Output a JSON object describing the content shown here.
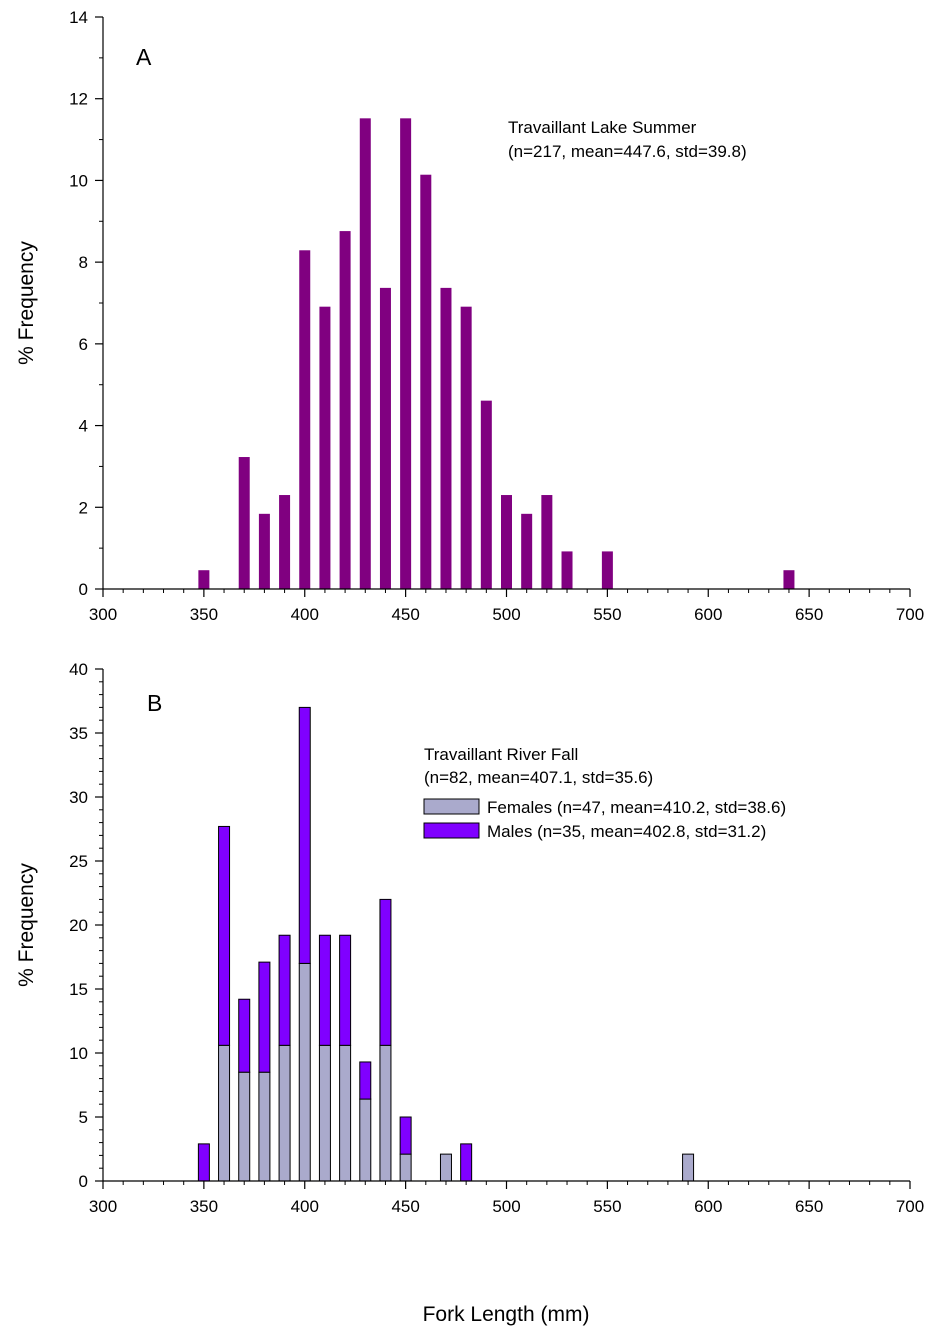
{
  "figure": {
    "xlabel": "Fork Length (mm)"
  },
  "chart_data": [
    {
      "type": "bar",
      "panel_label": "A",
      "title": "",
      "annotation_lines": [
        "Travaillant Lake Summer",
        "(n=217, mean=447.6, std=39.8)"
      ],
      "xlabel": "",
      "ylabel": "% Frequency",
      "xlim": [
        300,
        700
      ],
      "ylim": [
        0,
        14
      ],
      "x_ticks": [
        300,
        350,
        400,
        450,
        500,
        550,
        600,
        650,
        700
      ],
      "x_minor_step": 10,
      "y_ticks": [
        0,
        2,
        4,
        6,
        8,
        10,
        12,
        14
      ],
      "y_minor_step": 1,
      "grid": false,
      "legend": "none",
      "colors": {
        "bar": "#800080"
      },
      "x": [
        350,
        370,
        380,
        390,
        400,
        410,
        420,
        430,
        440,
        450,
        460,
        470,
        480,
        490,
        500,
        510,
        520,
        530,
        550,
        640
      ],
      "values": [
        0.46,
        3.23,
        1.84,
        2.3,
        8.29,
        6.91,
        8.76,
        11.52,
        7.37,
        11.52,
        10.14,
        7.37,
        6.91,
        4.61,
        2.3,
        1.84,
        2.3,
        0.92,
        0.92,
        0.46
      ]
    },
    {
      "type": "bar",
      "stacked": true,
      "panel_label": "B",
      "title": "",
      "annotation_lines": [
        "Travaillant River Fall",
        "(n=82, mean=407.1, std=35.6)"
      ],
      "xlabel": "Fork Length (mm)",
      "ylabel": "% Frequency",
      "xlim": [
        300,
        700
      ],
      "ylim": [
        0,
        40
      ],
      "x_ticks": [
        300,
        350,
        400,
        450,
        500,
        550,
        600,
        650,
        700
      ],
      "x_minor_step": 10,
      "y_ticks": [
        0,
        5,
        10,
        15,
        20,
        25,
        30,
        35,
        40
      ],
      "y_minor_step": 1,
      "grid": false,
      "legend": "right",
      "x": [
        350,
        360,
        370,
        380,
        390,
        400,
        410,
        420,
        430,
        440,
        450,
        470,
        480,
        590
      ],
      "series": [
        {
          "name": "Females (n=47, mean=410.2, std=38.6)",
          "color": "#aaaacc",
          "values": [
            0,
            10.6,
            8.5,
            8.5,
            10.6,
            17.0,
            10.6,
            10.6,
            6.4,
            10.6,
            2.1,
            2.1,
            0,
            2.1
          ]
        },
        {
          "name": "Males (n=35, mean=402.8, std=31.2)",
          "color": "#8000ff",
          "values": [
            2.9,
            17.1,
            5.7,
            8.6,
            8.6,
            20.0,
            8.6,
            8.6,
            2.9,
            11.4,
            2.9,
            0,
            2.9,
            0
          ]
        }
      ]
    }
  ]
}
